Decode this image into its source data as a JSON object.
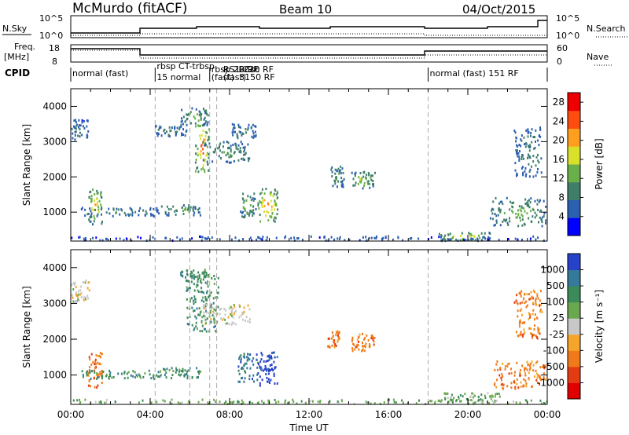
{
  "header": {
    "station": "McMurdo (fitACF)",
    "beam": "Beam 10",
    "date": "04/Oct/2015"
  },
  "strips": {
    "nsky_label": "N.Sky",
    "nsearch_label": "N.Search",
    "noise_ticks": [
      "10^5",
      "10^0"
    ],
    "freq_label_1": "Freq.",
    "freq_label_2": "[MHz]",
    "freq_ticks": [
      "18",
      "8"
    ],
    "nave_label": "Nave",
    "nave_ticks": [
      "60",
      "0"
    ],
    "cpid_label": "CPID"
  },
  "cpid_segments": [
    {
      "start_hr": 0.0,
      "label": "normal (fast)"
    },
    {
      "start_hr": 4.25,
      "label": "rbsp CT-trbsp"
    },
    {
      "start_hr": 4.25,
      "label": "15 normal"
    },
    {
      "start_hr": 7.0,
      "label": "rbsp 2BCsc"
    },
    {
      "start_hr": 7.0,
      "label": "(fast)"
    },
    {
      "start_hr": 7.6,
      "label": "RS1-220 RF"
    },
    {
      "start_hr": 7.6,
      "label": "(fast)"
    },
    {
      "start_hr": 8.4,
      "label": "0 RF"
    },
    {
      "start_hr": 8.4,
      "label": "3150 RF"
    },
    {
      "start_hr": 18.0,
      "label": "normal (fast) 151 RF"
    }
  ],
  "chart_data": [
    {
      "type": "heatmap",
      "name": "power",
      "xlabel": "Time UT",
      "ylabel": "Slant Range [km]",
      "x_ticks": [
        "00:00",
        "04:00",
        "08:00",
        "12:00",
        "16:00",
        "20:00",
        "00:00"
      ],
      "x_range_hr": [
        0,
        24
      ],
      "y_ticks": [
        "1000",
        "2000",
        "3000",
        "4000"
      ],
      "y_range_km": [
        180,
        4500
      ],
      "colorbar_label": "Power [dB]",
      "colorbar_ticks": [
        "4",
        "8",
        "12",
        "16",
        "20",
        "24",
        "28"
      ],
      "colorbar_range": [
        0,
        30
      ],
      "colorbar_colors": [
        "#0000ff",
        "#2b5fb0",
        "#3f7f6a",
        "#6ab04a",
        "#d9e12a",
        "#ff9f1f",
        "#ff4d10",
        "#ee0000"
      ],
      "blobs": [
        {
          "t": 0.4,
          "r": 3350,
          "tw": 0.5,
          "rw": 300,
          "v": 8
        },
        {
          "t": 1.2,
          "r": 1150,
          "tw": 0.35,
          "rw": 500,
          "v": 22
        },
        {
          "t": 2.5,
          "r": 1000,
          "tw": 2.0,
          "rw": 120,
          "v": 10
        },
        {
          "t": 5.5,
          "r": 1050,
          "tw": 1.0,
          "rw": 150,
          "v": 14
        },
        {
          "t": 5.0,
          "r": 3300,
          "tw": 0.8,
          "rw": 150,
          "v": 10
        },
        {
          "t": 6.6,
          "r": 2800,
          "tw": 0.35,
          "rw": 700,
          "v": 26
        },
        {
          "t": 6.2,
          "r": 3700,
          "tw": 0.7,
          "rw": 250,
          "v": 14
        },
        {
          "t": 7.8,
          "r": 2700,
          "tw": 1.2,
          "rw": 300,
          "v": 12
        },
        {
          "t": 8.7,
          "r": 3300,
          "tw": 0.6,
          "rw": 200,
          "v": 10
        },
        {
          "t": 8.9,
          "r": 1200,
          "tw": 0.4,
          "rw": 350,
          "v": 16
        },
        {
          "t": 9.9,
          "r": 1200,
          "tw": 0.5,
          "rw": 500,
          "v": 24
        },
        {
          "t": 13.4,
          "r": 2000,
          "tw": 0.35,
          "rw": 300,
          "v": 12
        },
        {
          "t": 14.7,
          "r": 1900,
          "tw": 0.6,
          "rw": 250,
          "v": 16
        },
        {
          "t": 19.8,
          "r": 300,
          "tw": 1.4,
          "rw": 120,
          "v": 20
        },
        {
          "t": 22.5,
          "r": 1000,
          "tw": 1.4,
          "rw": 400,
          "v": 14
        },
        {
          "t": 23.0,
          "r": 2700,
          "tw": 0.7,
          "rw": 700,
          "v": 10
        },
        {
          "t": 12.0,
          "r": 250,
          "tw": 12.0,
          "rw": 60,
          "v": 6
        }
      ]
    },
    {
      "type": "heatmap",
      "name": "velocity",
      "xlabel": "Time UT",
      "ylabel": "Slant Range [km]",
      "x_ticks": [
        "00:00",
        "04:00",
        "08:00",
        "12:00",
        "16:00",
        "20:00",
        "00:00"
      ],
      "x_range_hr": [
        0,
        24
      ],
      "y_ticks": [
        "1000",
        "2000",
        "3000",
        "4000"
      ],
      "y_range_km": [
        180,
        4500
      ],
      "colorbar_label": "Velocity [m s⁻¹]",
      "colorbar_ticks": [
        "1000",
        "500",
        "100",
        "25",
        "-25",
        "-100",
        "-500",
        "-1000"
      ],
      "colorbar_colors": [
        "#2642c9",
        "#357a9a",
        "#3c8a5a",
        "#6aa84f",
        "#c8c8c8",
        "#f4a52a",
        "#f07a1a",
        "#e43c12",
        "#e00000"
      ],
      "blobs": [
        {
          "t": 0.4,
          "r": 3350,
          "tw": 0.5,
          "rw": 300,
          "c": 4
        },
        {
          "t": 1.2,
          "r": 1150,
          "tw": 0.35,
          "rw": 500,
          "c": 6
        },
        {
          "t": 2.5,
          "r": 1000,
          "tw": 2.0,
          "rw": 120,
          "c": 2
        },
        {
          "t": 5.5,
          "r": 1050,
          "tw": 1.0,
          "rw": 150,
          "c": 2
        },
        {
          "t": 6.6,
          "r": 3000,
          "tw": 0.8,
          "rw": 800,
          "c": 2
        },
        {
          "t": 6.2,
          "r": 3700,
          "tw": 0.7,
          "rw": 250,
          "c": 2
        },
        {
          "t": 7.8,
          "r": 2700,
          "tw": 1.2,
          "rw": 300,
          "c": 4
        },
        {
          "t": 8.9,
          "r": 1200,
          "tw": 0.5,
          "rw": 400,
          "c": 1
        },
        {
          "t": 9.9,
          "r": 1200,
          "tw": 0.5,
          "rw": 500,
          "c": 0
        },
        {
          "t": 13.2,
          "r": 2000,
          "tw": 0.3,
          "rw": 250,
          "c": 6
        },
        {
          "t": 14.7,
          "r": 1900,
          "tw": 0.6,
          "rw": 250,
          "c": 6
        },
        {
          "t": 20.0,
          "r": 350,
          "tw": 1.6,
          "rw": 150,
          "c": 3
        },
        {
          "t": 22.6,
          "r": 1000,
          "tw": 1.3,
          "rw": 400,
          "c": 6
        },
        {
          "t": 23.0,
          "r": 2700,
          "tw": 0.7,
          "rw": 700,
          "c": 6
        },
        {
          "t": 12.0,
          "r": 250,
          "tw": 12.0,
          "rw": 60,
          "c": 3
        }
      ]
    }
  ]
}
